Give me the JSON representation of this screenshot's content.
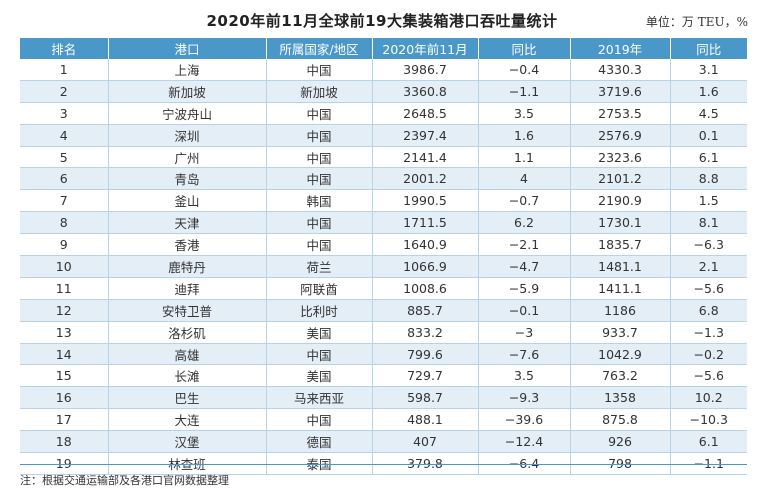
{
  "title": "2020年前11月全球前19大集装箱港口吞吐量统计",
  "unit": "单位：万 TEU，%",
  "columns": [
    "排名",
    "港口",
    "所属国家/地区",
    "2020年前11月",
    "同比",
    "2019年",
    "同比"
  ],
  "rows": [
    [
      "1",
      "上海",
      "中国",
      "3986.7",
      "−0.4",
      "4330.3",
      "3.1"
    ],
    [
      "2",
      "新加坡",
      "新加坡",
      "3360.8",
      "−1.1",
      "3719.6",
      "1.6"
    ],
    [
      "3",
      "宁波舟山",
      "中国",
      "2648.5",
      "3.5",
      "2753.5",
      "4.5"
    ],
    [
      "4",
      "深圳",
      "中国",
      "2397.4",
      "1.6",
      "2576.9",
      "0.1"
    ],
    [
      "5",
      "广州",
      "中国",
      "2141.4",
      "1.1",
      "2323.6",
      "6.1"
    ],
    [
      "6",
      "青岛",
      "中国",
      "2001.2",
      "4",
      "2101.2",
      "8.8"
    ],
    [
      "7",
      "釜山",
      "韩国",
      "1990.5",
      "−0.7",
      "2190.9",
      "1.5"
    ],
    [
      "8",
      "天津",
      "中国",
      "1711.5",
      "6.2",
      "1730.1",
      "8.1"
    ],
    [
      "9",
      "香港",
      "中国",
      "1640.9",
      "−2.1",
      "1835.7",
      "−6.3"
    ],
    [
      "10",
      "鹿特丹",
      "荷兰",
      "1066.9",
      "−4.7",
      "1481.1",
      "2.1"
    ],
    [
      "11",
      "迪拜",
      "阿联酋",
      "1008.6",
      "−5.9",
      "1411.1",
      "−5.6"
    ],
    [
      "12",
      "安特卫普",
      "比利时",
      "885.7",
      "−0.1",
      "1186",
      "6.8"
    ],
    [
      "13",
      "洛杉矶",
      "美国",
      "833.2",
      "−3",
      "933.7",
      "−1.3"
    ],
    [
      "14",
      "高雄",
      "中国",
      "799.6",
      "−7.6",
      "1042.9",
      "−0.2"
    ],
    [
      "15",
      "长滩",
      "美国",
      "729.7",
      "3.5",
      "763.2",
      "−5.6"
    ],
    [
      "16",
      "巴生",
      "马来西亚",
      "598.7",
      "−9.3",
      "1358",
      "10.2"
    ],
    [
      "17",
      "大连",
      "中国",
      "488.1",
      "−39.6",
      "875.8",
      "−10.3"
    ],
    [
      "18",
      "汉堡",
      "德国",
      "407",
      "−12.4",
      "926",
      "6.1"
    ],
    [
      "19",
      "林查班",
      "泰国",
      "379.8",
      "−6.4",
      "798",
      "−1.1"
    ]
  ],
  "note": "注：根据交通运输部及各港口官网数据整理"
}
